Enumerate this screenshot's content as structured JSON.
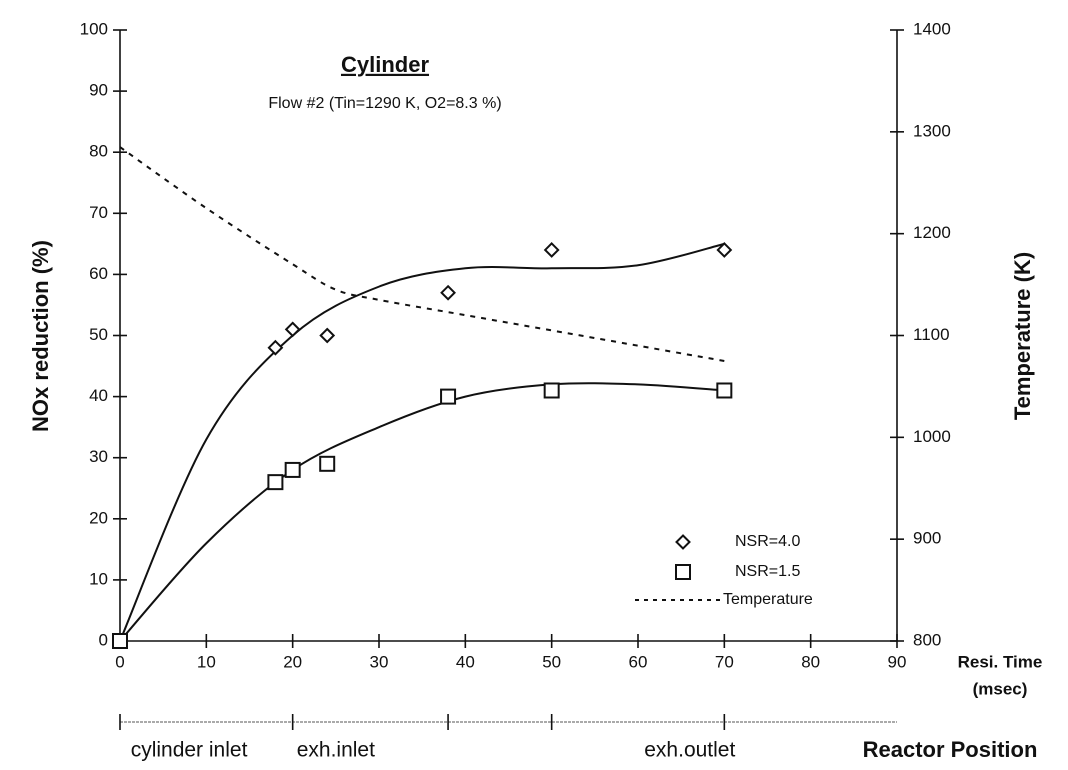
{
  "chart_data": {
    "type": "scatter",
    "title": "Cylinder",
    "subtitle": "Flow #2 (Tin=1290 K, O2=8.3 %)",
    "xlabel": [
      "Resi. Time",
      "(msec)"
    ],
    "ylabel": "NOx reduction (%)",
    "y2label": "Temperature (K)",
    "xlim": [
      0,
      90
    ],
    "xticks": [
      0,
      10,
      20,
      30,
      40,
      50,
      60,
      70,
      80,
      90
    ],
    "ylim": [
      0,
      100
    ],
    "yticks": [
      0,
      10,
      20,
      30,
      40,
      50,
      60,
      70,
      80,
      90,
      100
    ],
    "y2lim": [
      800,
      1400
    ],
    "y2ticks": [
      800,
      900,
      1000,
      1100,
      1200,
      1300,
      1400
    ],
    "legend": "lower right",
    "series": [
      {
        "name": "NSR=4.0",
        "marker": "diamond",
        "color": "#111111",
        "x": [
          0,
          18,
          20,
          24,
          38,
          50,
          70
        ],
        "values": [
          0,
          48,
          51,
          50,
          57,
          64,
          64
        ],
        "curve": {
          "x": [
            0,
            10,
            20,
            30,
            40,
            50,
            60,
            70
          ],
          "values": [
            0,
            33,
            50,
            58,
            61,
            61,
            61.5,
            65
          ]
        }
      },
      {
        "name": "NSR=1.5",
        "marker": "square",
        "color": "#111111",
        "x": [
          0,
          18,
          20,
          24,
          38,
          50,
          70
        ],
        "values": [
          0,
          26,
          28,
          29,
          40,
          41,
          41
        ],
        "curve": {
          "x": [
            0,
            10,
            20,
            30,
            40,
            50,
            60,
            70
          ],
          "values": [
            0,
            16,
            28,
            35,
            40,
            42,
            42,
            41
          ]
        }
      },
      {
        "name": "Temperature",
        "marker": "dashed-line",
        "color": "#111111",
        "axis": "y2",
        "x": [
          0,
          10,
          20,
          25,
          30,
          40,
          50,
          60,
          70
        ],
        "values": [
          1285,
          1225,
          1170,
          1145,
          1135,
          1120,
          1105,
          1090,
          1075
        ]
      }
    ],
    "position_axis": {
      "title": "Reactor Position",
      "ticks": [
        0,
        20,
        38,
        50,
        70
      ],
      "labels": [
        {
          "value": 8,
          "label": "cylinder inlet"
        },
        {
          "value": 25,
          "label": "exh.inlet"
        },
        {
          "value": 66,
          "label": "exh.outlet"
        }
      ]
    }
  }
}
